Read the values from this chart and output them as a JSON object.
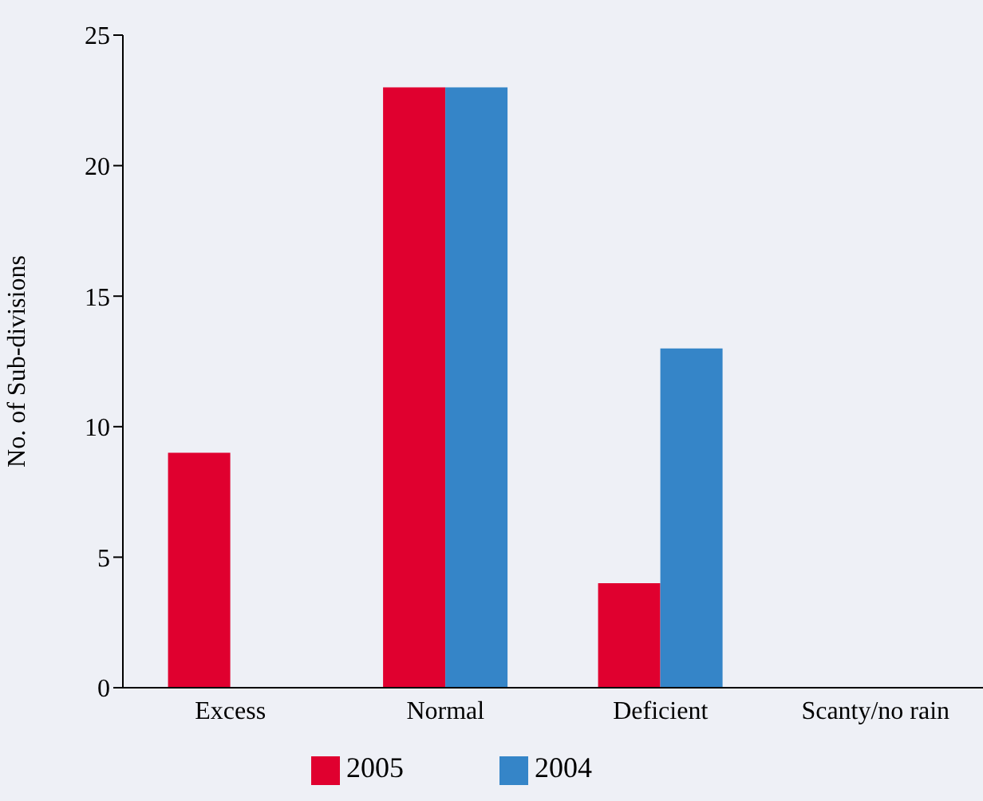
{
  "chart_data": {
    "type": "bar",
    "ylabel": "No. of Sub-divisions",
    "categories": [
      "Excess",
      "Normal",
      "Deficient",
      "Scanty/no rain"
    ],
    "series": [
      {
        "name": "2005",
        "color": "#e0002f",
        "values": [
          9,
          23,
          4,
          0
        ]
      },
      {
        "name": "2004",
        "color": "#3585c8",
        "values": [
          0,
          23,
          13,
          0
        ]
      }
    ],
    "ylim": [
      0,
      25
    ],
    "yticks": [
      0,
      5,
      10,
      15,
      20,
      25
    ],
    "grid": false,
    "legend": "bottom"
  }
}
